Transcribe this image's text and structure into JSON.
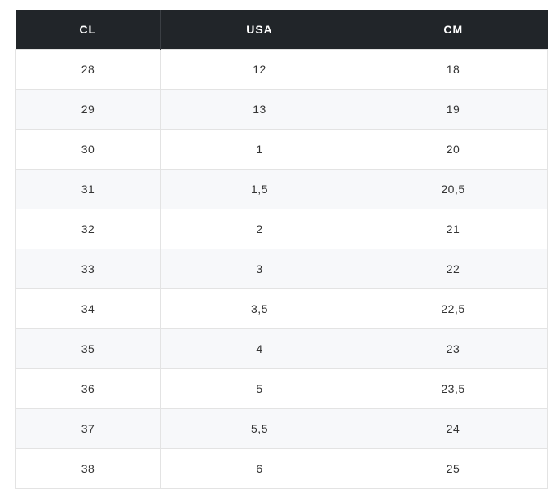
{
  "table": {
    "headers": [
      "CL",
      "USA",
      "CM"
    ],
    "rows": [
      [
        "28",
        "12",
        "18"
      ],
      [
        "29",
        "13",
        "19"
      ],
      [
        "30",
        "1",
        "20"
      ],
      [
        "31",
        "1,5",
        "20,5"
      ],
      [
        "32",
        "2",
        "21"
      ],
      [
        "33",
        "3",
        "22"
      ],
      [
        "34",
        "3,5",
        "22,5"
      ],
      [
        "35",
        "4",
        "23"
      ],
      [
        "36",
        "5",
        "23,5"
      ],
      [
        "37",
        "5,5",
        "24"
      ],
      [
        "38",
        "6",
        "25"
      ]
    ]
  },
  "colors": {
    "header_bg": "#212529",
    "header_text": "#ffffff",
    "row_alt_bg": "#f7f8fa",
    "cell_text": "#333333"
  }
}
